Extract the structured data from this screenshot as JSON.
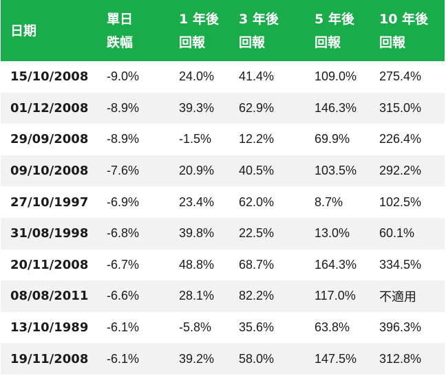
{
  "header": {
    "date": "日期",
    "daily_drop": [
      "單日",
      "跌幅"
    ],
    "return_1y": [
      "1 年後",
      "回報"
    ],
    "return_3y": [
      "3 年後",
      "回報"
    ],
    "return_5y": [
      "5 年後",
      "回報"
    ],
    "return_10y": [
      "10 年後",
      "回報"
    ]
  },
  "rows": [
    {
      "date": "15/10/2008",
      "drop": "-9.0%",
      "r1": "24.0%",
      "r3": "41.4%",
      "r5": "109.0%",
      "r10": "275.4%"
    },
    {
      "date": "01/12/2008",
      "drop": "-8.9%",
      "r1": "39.3%",
      "r3": "62.9%",
      "r5": "146.3%",
      "r10": "315.0%"
    },
    {
      "date": "29/09/2008",
      "drop": "-8.9%",
      "r1": "-1.5%",
      "r3": "12.2%",
      "r5": "69.9%",
      "r10": "226.4%"
    },
    {
      "date": "09/10/2008",
      "drop": "-7.6%",
      "r1": "20.9%",
      "r3": "40.5%",
      "r5": "103.5%",
      "r10": "292.2%"
    },
    {
      "date": "27/10/1997",
      "drop": "-6.9%",
      "r1": "23.4%",
      "r3": "62.0%",
      "r5": "8.7%",
      "r10": "102.5%"
    },
    {
      "date": "31/08/1998",
      "drop": "-6.8%",
      "r1": "39.8%",
      "r3": "22.5%",
      "r5": "13.0%",
      "r10": "60.1%"
    },
    {
      "date": "20/11/2008",
      "drop": "-6.7%",
      "r1": "48.8%",
      "r3": "68.7%",
      "r5": "164.3%",
      "r10": "334.5%"
    },
    {
      "date": "08/08/2011",
      "drop": "-6.6%",
      "r1": "28.1%",
      "r3": "82.2%",
      "r5": "117.0%",
      "r10": "不適用"
    },
    {
      "date": "13/10/1989",
      "drop": "-6.1%",
      "r1": "-5.8%",
      "r3": "35.6%",
      "r5": "63.8%",
      "r10": "396.3%"
    },
    {
      "date": "19/11/2008",
      "drop": "-6.1%",
      "r1": "39.2%",
      "r3": "58.0%",
      "r5": "147.5%",
      "r10": "312.8%"
    }
  ],
  "colors": {
    "header_bg": "#1aab4b",
    "header_text": "#ffffff",
    "alt_row_bg": "#f2f2f2"
  }
}
